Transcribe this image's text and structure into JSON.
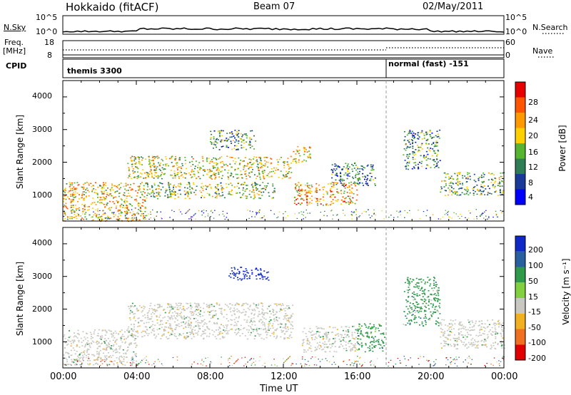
{
  "header": {
    "site": "Hokkaido (fitACF)",
    "beam": "Beam 07",
    "date": "02/May/2011"
  },
  "sky_panel": {
    "left_label": "N.Sky",
    "right_label": "N.Search",
    "left_ticks": [
      "10^5",
      "10^0"
    ],
    "right_ticks": [
      "10^5",
      "10^0"
    ]
  },
  "freq_panel": {
    "left_label_1": "Freq.",
    "left_label_2": "[MHz]",
    "right_label": "Nave",
    "left_ticks": [
      "18",
      "8"
    ],
    "right_ticks": [
      "60",
      "0"
    ]
  },
  "cpid_panel": {
    "label": "CPID",
    "mode_1": "themis 3300",
    "mode_2": "normal (fast) -151"
  },
  "power_panel": {
    "ylabel": "Slant Range [km]",
    "yticks": [
      "4000",
      "3000",
      "2000",
      "1000"
    ],
    "colorbar_label": "Power [dB]",
    "colorbar_ticks": [
      "28",
      "24",
      "20",
      "16",
      "12",
      "8",
      "4"
    ],
    "colors": [
      "#0000ff",
      "#1a3a99",
      "#2e7d55",
      "#55b52e",
      "#ffd000",
      "#ff9900",
      "#ff5500",
      "#e60000"
    ]
  },
  "velocity_panel": {
    "ylabel": "Slant Range [km]",
    "yticks": [
      "4000",
      "3000",
      "2000",
      "1000"
    ],
    "colorbar_label": "Velocity [m s⁻¹]",
    "colorbar_ticks": [
      "200",
      "100",
      "50",
      "15",
      "-15",
      "-50",
      "-100",
      "-200"
    ],
    "colors": [
      "#1028c8",
      "#2860a0",
      "#2e9a4a",
      "#80d040",
      "#c8c8c0",
      "#f0b020",
      "#f07020",
      "#e00000"
    ]
  },
  "xaxis": {
    "label": "Time UT",
    "ticks": [
      "00:00",
      "04:00",
      "08:00",
      "12:00",
      "16:00",
      "20:00",
      "00:00"
    ]
  },
  "chart_data": [
    {
      "type": "heatmap",
      "title": "Hokkaido (fitACF) Beam 07 02/May/2011",
      "xlabel": "Time UT",
      "ylabel": "Slant Range [km]",
      "colorbar": "Power [dB]",
      "xlim": [
        0,
        24
      ],
      "ylim": [
        200,
        4500
      ],
      "zlim": [
        0,
        30
      ],
      "blobs": [
        {
          "t0": 0.0,
          "t1": 4.5,
          "r0": 200,
          "r1": 1400,
          "power": 26
        },
        {
          "t0": 3.5,
          "t1": 12.5,
          "r0": 1500,
          "r1": 2200,
          "power": 24
        },
        {
          "t0": 4.5,
          "t1": 11.5,
          "r0": 900,
          "r1": 1400,
          "power": 22
        },
        {
          "t0": 8.0,
          "t1": 10.5,
          "r0": 2400,
          "r1": 3000,
          "power": 18
        },
        {
          "t0": 12.5,
          "t1": 16.0,
          "r0": 700,
          "r1": 1400,
          "power": 28
        },
        {
          "t0": 12.5,
          "t1": 13.5,
          "r0": 2000,
          "r1": 2500,
          "power": 26
        },
        {
          "t0": 14.5,
          "t1": 17.0,
          "r0": 1300,
          "r1": 2000,
          "power": 16
        },
        {
          "t0": 18.5,
          "t1": 20.5,
          "r0": 1800,
          "r1": 3000,
          "power": 18
        },
        {
          "t0": 20.5,
          "t1": 24.0,
          "r0": 1000,
          "r1": 1700,
          "power": 20
        }
      ]
    },
    {
      "type": "heatmap",
      "title": "Velocity",
      "xlabel": "Time UT",
      "ylabel": "Slant Range [km]",
      "colorbar": "Velocity [m s-1]",
      "xlim": [
        0,
        24
      ],
      "ylim": [
        200,
        4500
      ],
      "zlim": [
        -200,
        200
      ],
      "blobs": [
        {
          "t0": 0.0,
          "t1": 4.0,
          "r0": 300,
          "r1": 1400,
          "velocity": 0
        },
        {
          "t0": 3.5,
          "t1": 12.5,
          "r0": 1100,
          "r1": 2200,
          "velocity": 0
        },
        {
          "t0": 9.0,
          "t1": 11.2,
          "r0": 2900,
          "r1": 3300,
          "velocity": 200
        },
        {
          "t0": 13.0,
          "t1": 16.0,
          "r0": 700,
          "r1": 1500,
          "velocity": 0
        },
        {
          "t0": 16.0,
          "t1": 17.5,
          "r0": 700,
          "r1": 1600,
          "velocity": 60
        },
        {
          "t0": 18.5,
          "t1": 20.5,
          "r0": 1500,
          "r1": 3000,
          "velocity": 40
        },
        {
          "t0": 20.5,
          "t1": 24.0,
          "r0": 800,
          "r1": 1700,
          "velocity": 0
        }
      ]
    }
  ]
}
